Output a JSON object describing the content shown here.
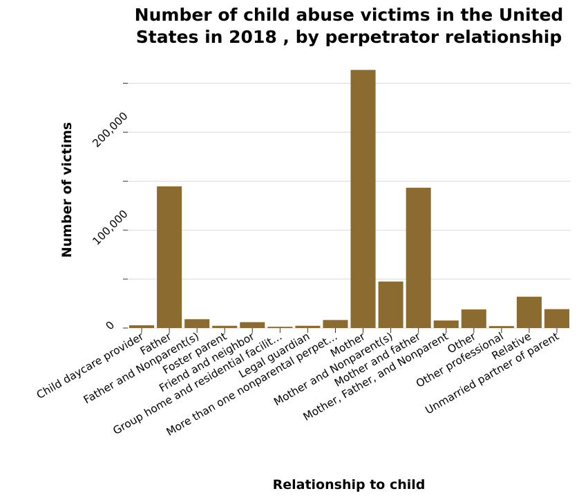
{
  "chart_data": {
    "type": "bar",
    "title_lines": [
      "Number of child abuse victims in the United",
      "States in 2018 , by perpetrator relationship"
    ],
    "xlabel": "Relationship to child",
    "ylabel": "Number of victims",
    "categories": [
      "Child daycare provider",
      "Father",
      "Father and Nonparent(s)",
      "Foster parent",
      "Friend and neighbor",
      "Group home and residential facilit…",
      "Legal guardian",
      "More than one nonparental perpet…",
      "Mother",
      "Mother and Nonparent(s)",
      "Mother and father",
      "Mother, Father, and Nonparent",
      "Other",
      "Other professional",
      "Relative",
      "Unmarried partner of parent"
    ],
    "values": [
      2800,
      144700,
      9000,
      2300,
      6000,
      1300,
      2300,
      8200,
      263600,
      47500,
      143300,
      7700,
      19000,
      2000,
      32000,
      19300
    ],
    "yticks": [
      0,
      100000,
      200000
    ],
    "ytick_labels": [
      "0",
      "100,000",
      "200,000"
    ],
    "minor_grid": [
      50000,
      150000,
      250000
    ],
    "ylim": [
      0,
      280000
    ],
    "bar_color": "#8b6b30",
    "grid": true
  }
}
